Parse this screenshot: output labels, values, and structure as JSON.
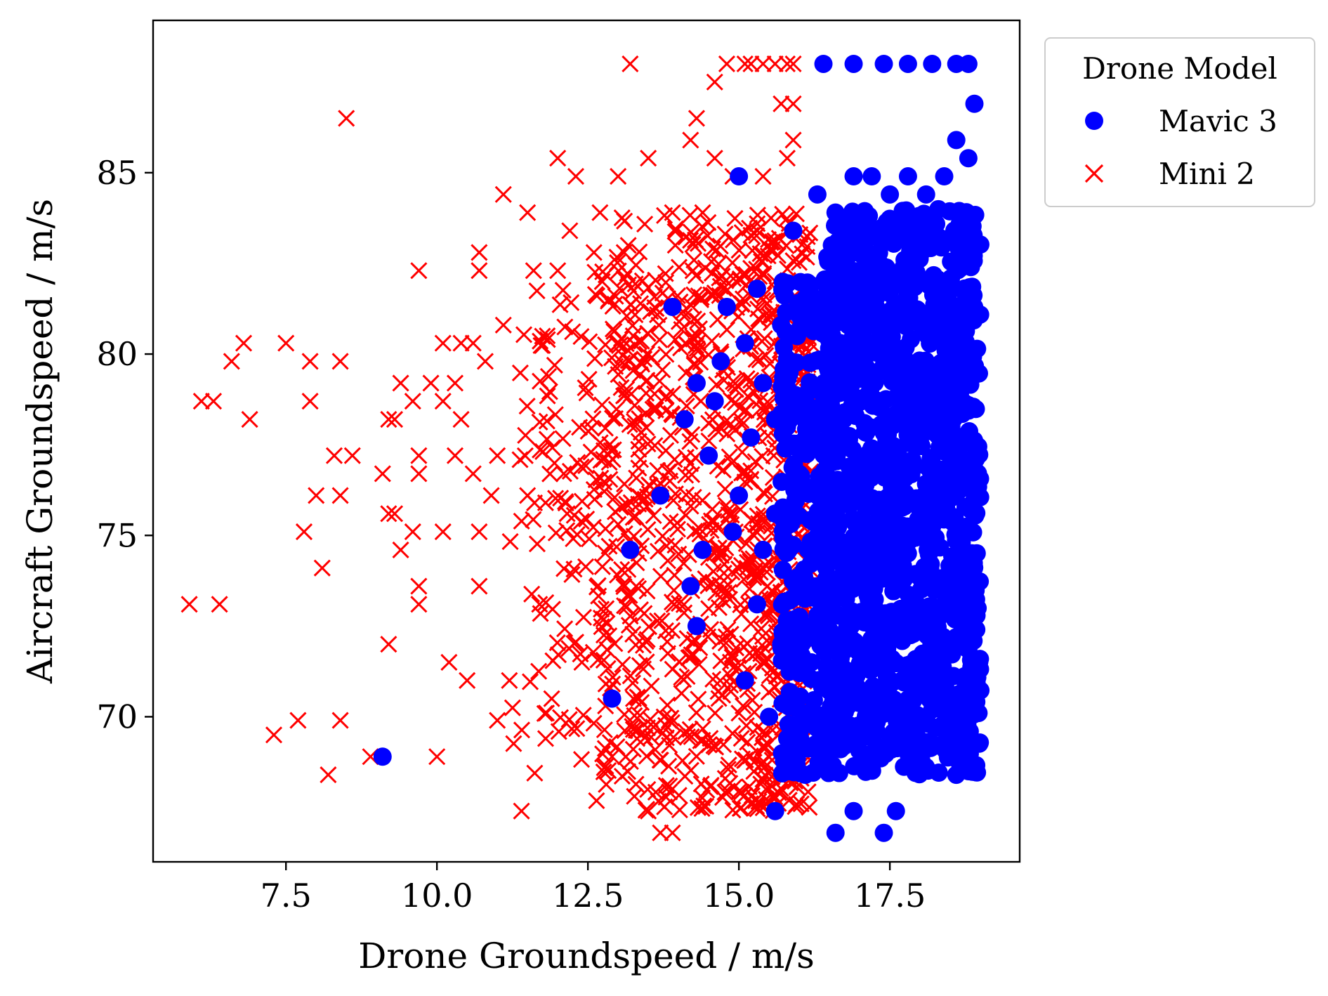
{
  "chart_data": {
    "type": "scatter",
    "title": "",
    "xlabel": "Drone Groundspeed / m/s",
    "ylabel": "Aircraft Groundspeed / m/s",
    "xlim": [
      5.3,
      19.65
    ],
    "ylim": [
      66.0,
      89.2
    ],
    "xticks": [
      7.5,
      10.0,
      12.5,
      15.0,
      17.5
    ],
    "xtick_labels": [
      "7.5",
      "10.0",
      "12.5",
      "15.0",
      "17.5"
    ],
    "yticks": [
      70,
      75,
      80,
      85
    ],
    "ytick_labels": [
      "70",
      "75",
      "80",
      "85"
    ],
    "grid": false,
    "legend": {
      "title": "Drone Model",
      "placement": "outside-top-right"
    },
    "series": [
      {
        "name": "Mavic 3",
        "marker": "circle",
        "color": "#0000ff",
        "points": [
          [
            9.1,
            68.9
          ],
          [
            12.9,
            70.5
          ],
          [
            13.2,
            74.6
          ],
          [
            13.7,
            76.1
          ],
          [
            13.9,
            81.3
          ],
          [
            14.3,
            79.2
          ],
          [
            14.4,
            74.6
          ],
          [
            14.3,
            72.5
          ],
          [
            14.5,
            77.2
          ],
          [
            14.8,
            81.3
          ],
          [
            14.7,
            79.8
          ],
          [
            15.0,
            84.9
          ],
          [
            15.1,
            80.3
          ],
          [
            15.3,
            81.8
          ],
          [
            15.2,
            77.7
          ],
          [
            14.9,
            75.1
          ],
          [
            15.1,
            71.0
          ],
          [
            15.4,
            74.6
          ],
          [
            15.6,
            78.2
          ],
          [
            15.9,
            83.4
          ],
          [
            15.8,
            69.4
          ],
          [
            15.6,
            67.4
          ],
          [
            16.1,
            68.4
          ],
          [
            16.3,
            84.4
          ],
          [
            16.4,
            88.0
          ],
          [
            16.9,
            88.0
          ],
          [
            17.4,
            88.0
          ],
          [
            17.8,
            88.0
          ],
          [
            18.2,
            88.0
          ],
          [
            18.8,
            88.0
          ],
          [
            18.6,
            88.0
          ],
          [
            18.9,
            86.9
          ],
          [
            18.6,
            85.9
          ],
          [
            18.8,
            85.4
          ],
          [
            16.6,
            66.8
          ],
          [
            17.4,
            66.8
          ],
          [
            17.6,
            67.4
          ],
          [
            16.9,
            67.4
          ],
          [
            16.2,
            71.5
          ],
          [
            16.5,
            72.0
          ],
          [
            15.7,
            72.0
          ],
          [
            16.0,
            73.6
          ],
          [
            15.3,
            73.1
          ],
          [
            15.6,
            75.6
          ],
          [
            16.0,
            76.7
          ],
          [
            15.4,
            79.2
          ],
          [
            15.7,
            80.8
          ],
          [
            16.2,
            81.3
          ],
          [
            16.6,
            83.9
          ],
          [
            16.9,
            84.9
          ],
          [
            17.2,
            84.9
          ],
          [
            17.5,
            84.4
          ],
          [
            17.8,
            84.9
          ],
          [
            18.1,
            84.4
          ],
          [
            18.4,
            84.9
          ],
          [
            14.1,
            78.2
          ],
          [
            14.6,
            78.7
          ],
          [
            14.2,
            73.6
          ],
          [
            15.0,
            76.1
          ],
          [
            15.5,
            70.0
          ],
          [
            16.8,
            69.4
          ],
          [
            17.3,
            68.9
          ],
          [
            18.0,
            68.9
          ],
          [
            18.6,
            68.4
          ]
        ],
        "dense_regions": [
          {
            "x_range": [
              16.4,
              19.0
            ],
            "y_range": [
              68.4,
              84.0
            ],
            "count": 1200
          },
          {
            "x_range": [
              15.7,
              16.5
            ],
            "y_range": [
              68.4,
              82.0
            ],
            "count": 260
          }
        ]
      },
      {
        "name": "Mini 2",
        "marker": "x",
        "color": "#ff0000",
        "points": [
          [
            5.9,
            73.1
          ],
          [
            6.1,
            78.7
          ],
          [
            6.3,
            78.7
          ],
          [
            6.4,
            73.1
          ],
          [
            6.6,
            79.8
          ],
          [
            6.8,
            80.3
          ],
          [
            6.9,
            78.2
          ],
          [
            7.3,
            69.5
          ],
          [
            7.5,
            80.3
          ],
          [
            7.7,
            69.9
          ],
          [
            7.8,
            75.1
          ],
          [
            7.9,
            78.7
          ],
          [
            7.9,
            79.8
          ],
          [
            8.0,
            76.1
          ],
          [
            8.1,
            74.1
          ],
          [
            8.2,
            68.4
          ],
          [
            8.3,
            77.2
          ],
          [
            8.4,
            79.8
          ],
          [
            8.4,
            76.1
          ],
          [
            8.4,
            69.9
          ],
          [
            8.5,
            86.5
          ],
          [
            8.6,
            77.2
          ],
          [
            8.9,
            68.9
          ],
          [
            9.1,
            76.7
          ],
          [
            9.2,
            75.6
          ],
          [
            9.2,
            78.2
          ],
          [
            9.2,
            72.0
          ],
          [
            9.3,
            78.2
          ],
          [
            9.3,
            75.6
          ],
          [
            9.4,
            79.2
          ],
          [
            9.4,
            74.6
          ],
          [
            9.6,
            75.1
          ],
          [
            9.6,
            78.7
          ],
          [
            9.7,
            73.6
          ],
          [
            9.7,
            73.1
          ],
          [
            9.7,
            77.2
          ],
          [
            9.7,
            76.7
          ],
          [
            9.7,
            82.3
          ],
          [
            9.9,
            79.2
          ],
          [
            10.0,
            68.9
          ],
          [
            10.1,
            78.7
          ],
          [
            10.1,
            75.1
          ],
          [
            10.1,
            80.3
          ],
          [
            10.2,
            71.5
          ],
          [
            10.3,
            79.2
          ],
          [
            10.3,
            77.2
          ],
          [
            10.4,
            80.3
          ],
          [
            10.4,
            78.2
          ],
          [
            10.5,
            71.0
          ],
          [
            10.6,
            76.7
          ],
          [
            10.6,
            80.3
          ],
          [
            10.7,
            75.1
          ],
          [
            10.7,
            82.8
          ],
          [
            10.7,
            82.3
          ],
          [
            10.7,
            73.6
          ],
          [
            10.8,
            79.8
          ],
          [
            10.9,
            76.1
          ],
          [
            11.0,
            77.2
          ],
          [
            11.0,
            69.9
          ],
          [
            11.1,
            80.8
          ],
          [
            11.1,
            84.4
          ],
          [
            11.2,
            71.0
          ],
          [
            11.4,
            67.4
          ],
          [
            11.5,
            83.9
          ],
          [
            11.5,
            76.1
          ],
          [
            11.6,
            82.3
          ],
          [
            11.7,
            73.1
          ],
          [
            11.8,
            69.4
          ],
          [
            11.9,
            70.5
          ],
          [
            12.0,
            85.4
          ],
          [
            12.0,
            82.3
          ],
          [
            12.1,
            76.7
          ],
          [
            12.2,
            83.4
          ],
          [
            12.3,
            84.9
          ],
          [
            12.4,
            71.5
          ],
          [
            12.6,
            82.8
          ],
          [
            12.7,
            83.9
          ],
          [
            12.9,
            68.9
          ],
          [
            13.0,
            84.9
          ],
          [
            13.1,
            82.8
          ],
          [
            13.2,
            88.0
          ],
          [
            13.3,
            73.6
          ],
          [
            13.5,
            67.4
          ],
          [
            13.5,
            85.4
          ],
          [
            13.7,
            66.8
          ],
          [
            13.9,
            66.8
          ],
          [
            13.9,
            83.9
          ],
          [
            14.2,
            85.9
          ],
          [
            14.3,
            86.5
          ],
          [
            14.4,
            83.9
          ],
          [
            14.6,
            87.5
          ],
          [
            14.8,
            88.0
          ],
          [
            15.1,
            88.0
          ],
          [
            15.2,
            88.0
          ],
          [
            15.4,
            88.0
          ],
          [
            15.6,
            88.0
          ],
          [
            15.8,
            88.0
          ],
          [
            15.9,
            88.0
          ],
          [
            15.7,
            86.9
          ],
          [
            15.9,
            86.9
          ],
          [
            15.8,
            85.4
          ],
          [
            15.9,
            85.9
          ],
          [
            14.6,
            85.4
          ],
          [
            14.9,
            84.9
          ],
          [
            15.4,
            84.9
          ]
        ],
        "dense_regions": [
          {
            "x_range": [
              12.5,
              16.2
            ],
            "y_range": [
              67.4,
              83.9
            ],
            "count": 900
          },
          {
            "x_range": [
              11.2,
              13.5
            ],
            "y_range": [
              68.4,
              82.3
            ],
            "count": 220
          }
        ]
      }
    ]
  }
}
